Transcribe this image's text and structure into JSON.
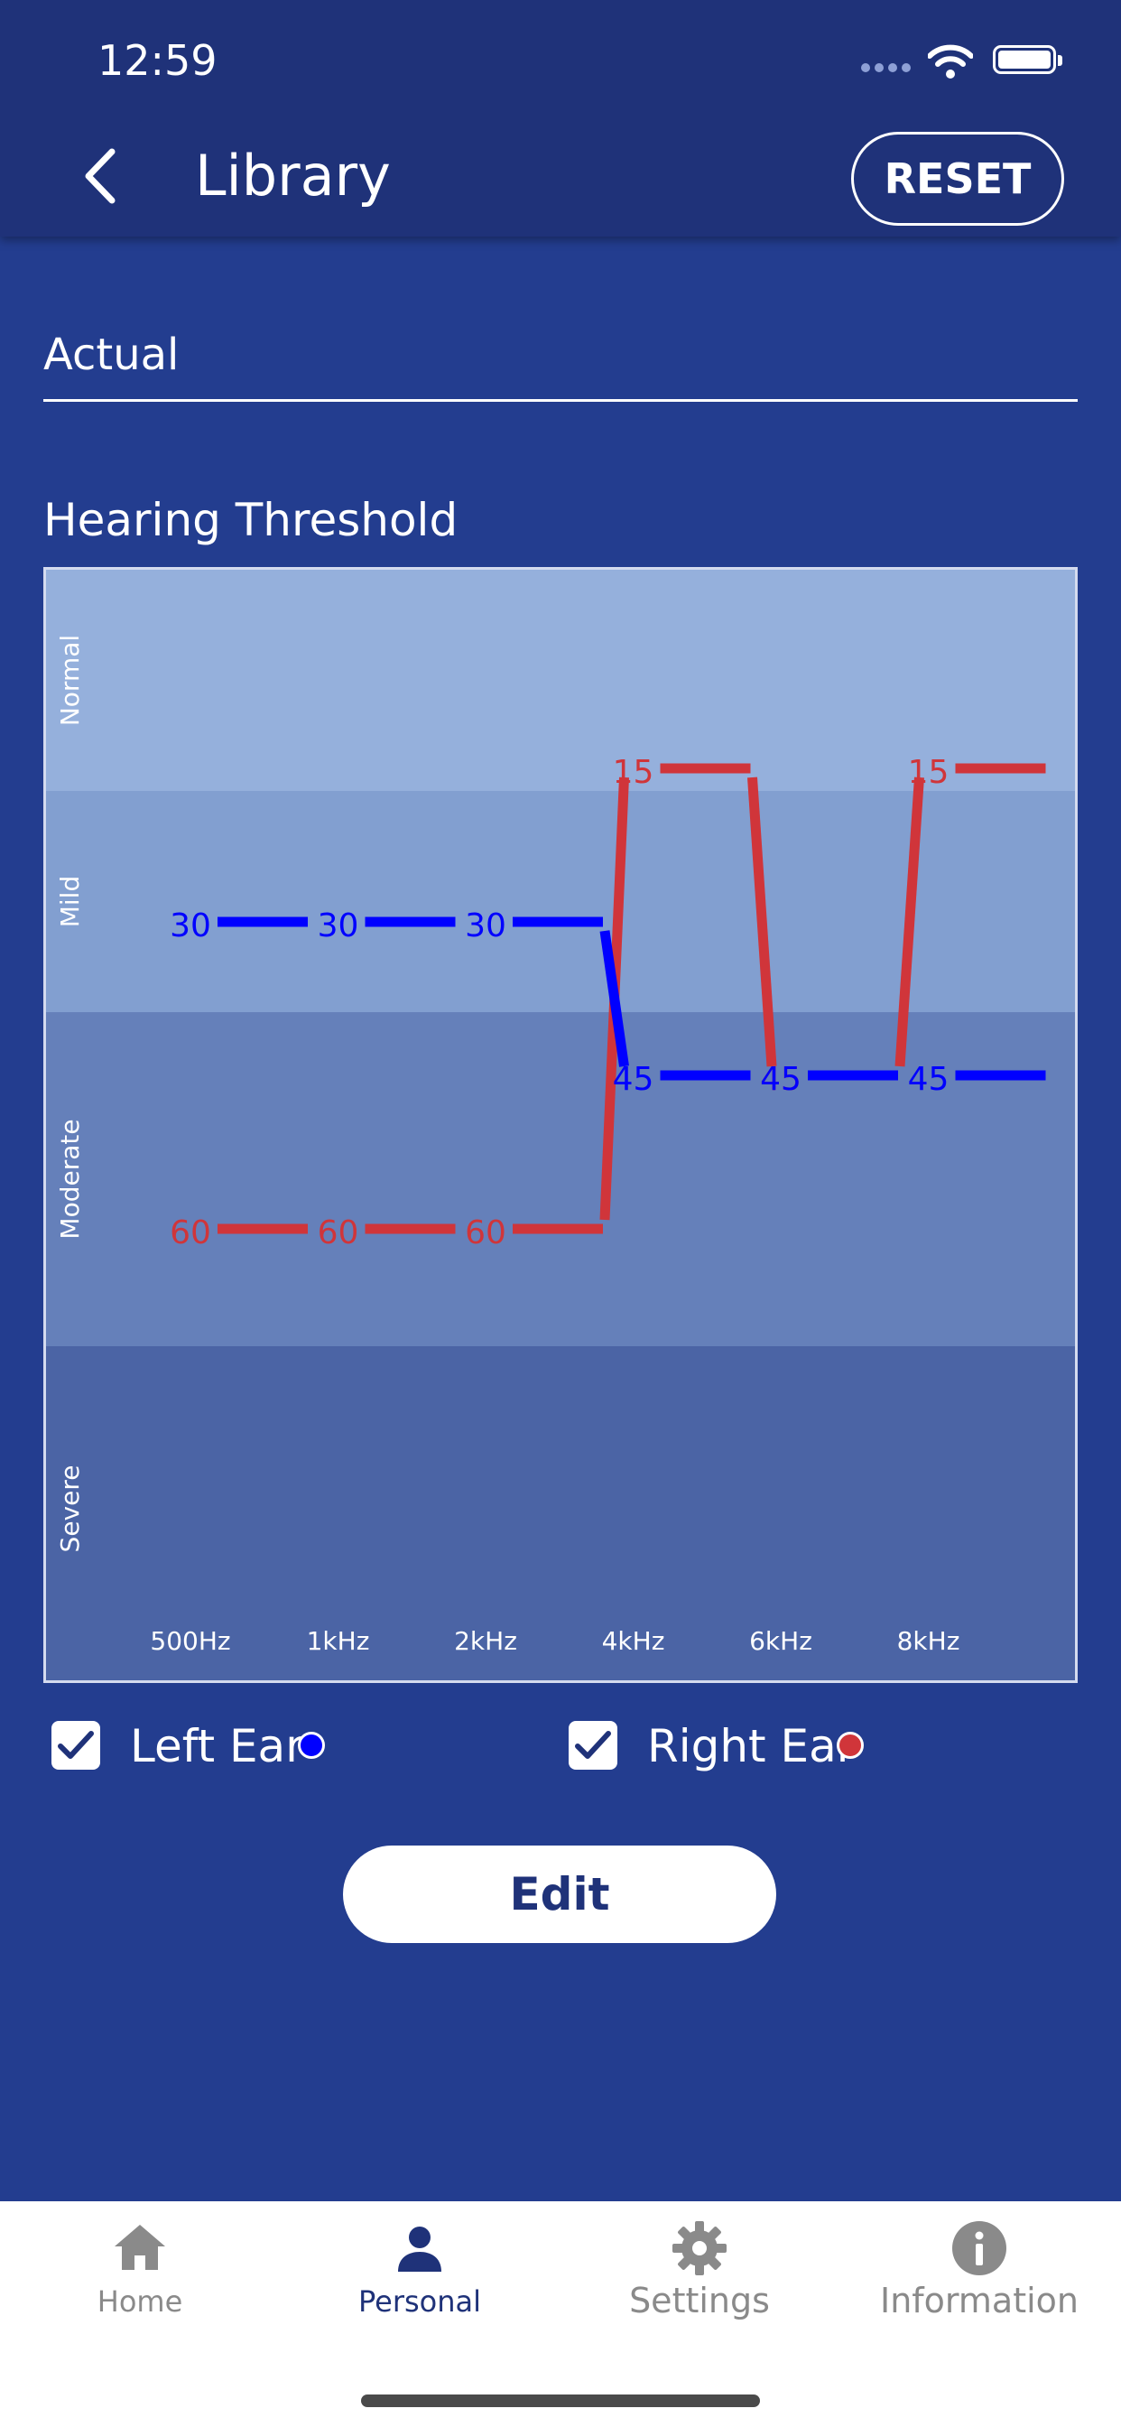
{
  "status_bar": {
    "time": "12:59"
  },
  "nav": {
    "title": "Library",
    "reset_label": "RESET",
    "back_icon": "chevron-left-icon"
  },
  "profile_field": {
    "value": "Actual"
  },
  "section_title": "Hearing Threshold",
  "colors": {
    "left_ear": "#0000ff",
    "right_ear": "#d0353a",
    "background": "#233d8f",
    "header": "#1f3279"
  },
  "chart_data": {
    "type": "line",
    "categories": [
      "500Hz",
      "1kHz",
      "2kHz",
      "4kHz",
      "6kHz",
      "8kHz"
    ],
    "bands": [
      "Normal",
      "Mild",
      "Moderate",
      "Severe"
    ],
    "series": [
      {
        "name": "Left Ear",
        "values": [
          30,
          30,
          30,
          45,
          45,
          45
        ]
      },
      {
        "name": "Right Ear",
        "values": [
          60,
          60,
          60,
          15,
          45,
          15
        ]
      }
    ],
    "value_labels": {
      "left": [
        "30",
        "30",
        "30",
        "45",
        "45",
        "45"
      ],
      "right": [
        "60",
        "60",
        "60",
        "15",
        "45",
        "15"
      ]
    },
    "ylim": [
      0,
      90
    ],
    "y_inverted": true,
    "grid": false
  },
  "legend": {
    "left_label": "Left Ear",
    "right_label": "Right Ear",
    "left_checked": true,
    "right_checked": true
  },
  "edit_label": "Edit",
  "tabs": [
    {
      "label": "Home",
      "icon": "home-icon",
      "active": false
    },
    {
      "label": "Personal",
      "icon": "person-icon",
      "active": true
    },
    {
      "label": "Settings",
      "icon": "gear-icon",
      "active": false
    },
    {
      "label": "Information",
      "icon": "info-icon",
      "active": false
    }
  ]
}
